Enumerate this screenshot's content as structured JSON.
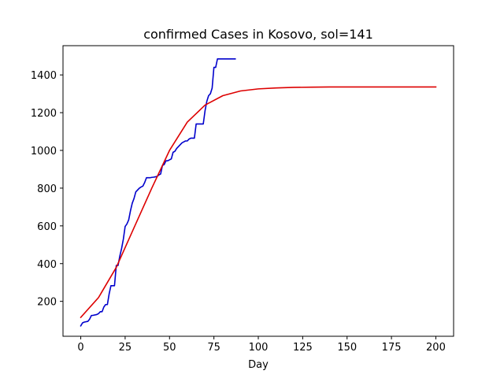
{
  "chart_data": {
    "type": "line",
    "title": "confirmed Cases in Kosovo, sol=141",
    "xlabel": "Day",
    "ylabel": "",
    "xlim": [
      -10,
      210
    ],
    "ylim": [
      15,
      1555
    ],
    "xticks": [
      0,
      25,
      50,
      75,
      100,
      125,
      150,
      175,
      200
    ],
    "yticks": [
      200,
      400,
      600,
      800,
      1000,
      1200,
      1400
    ],
    "grid": false,
    "series": [
      {
        "color": "#0000cc",
        "x": [
          0,
          1,
          2,
          4,
          5,
          6,
          7,
          9,
          10,
          11,
          12,
          13,
          14,
          15,
          16,
          17,
          18,
          19,
          20,
          21,
          22,
          23,
          24,
          25,
          26,
          27,
          28,
          29,
          30,
          31,
          32,
          33,
          34,
          35,
          36,
          37,
          38,
          39,
          40,
          41,
          42,
          43,
          44,
          45,
          46,
          47,
          48,
          49,
          50,
          51,
          52,
          53,
          54,
          55,
          56,
          57,
          58,
          59,
          60,
          61,
          62,
          63,
          64,
          65,
          66,
          67,
          68,
          69,
          70,
          71,
          72,
          73,
          74,
          75,
          76,
          77,
          78,
          79,
          80,
          81,
          82,
          83,
          84,
          85,
          86,
          87
        ],
        "values": [
          70,
          86,
          90,
          94,
          106,
          125,
          126,
          130,
          135,
          145,
          145,
          170,
          183,
          183,
          240,
          283,
          283,
          283,
          390,
          390,
          440,
          480,
          530,
          597,
          610,
          632,
          680,
          720,
          745,
          780,
          790,
          800,
          806,
          811,
          830,
          855,
          855,
          855,
          857,
          858,
          860,
          862,
          870,
          875,
          920,
          925,
          945,
          945,
          950,
          955,
          990,
          995,
          1010,
          1020,
          1030,
          1040,
          1045,
          1050,
          1050,
          1060,
          1065,
          1065,
          1065,
          1140,
          1140,
          1140,
          1140,
          1140,
          1210,
          1260,
          1290,
          1300,
          1330,
          1440,
          1440,
          1485,
          1485,
          1485,
          1485,
          1485,
          1485,
          1485,
          1485,
          1485,
          1485,
          1485
        ]
      },
      {
        "color": "#dd0000",
        "x": [
          0,
          10,
          20,
          30,
          40,
          50,
          60,
          70,
          80,
          90,
          100,
          110,
          120,
          130,
          140,
          150,
          160,
          170,
          180,
          190,
          200
        ],
        "values": [
          115,
          220,
          380,
          590,
          800,
          1000,
          1150,
          1240,
          1290,
          1315,
          1326,
          1331,
          1334,
          1335,
          1336,
          1336,
          1336,
          1336,
          1336,
          1336,
          1336
        ]
      }
    ]
  }
}
